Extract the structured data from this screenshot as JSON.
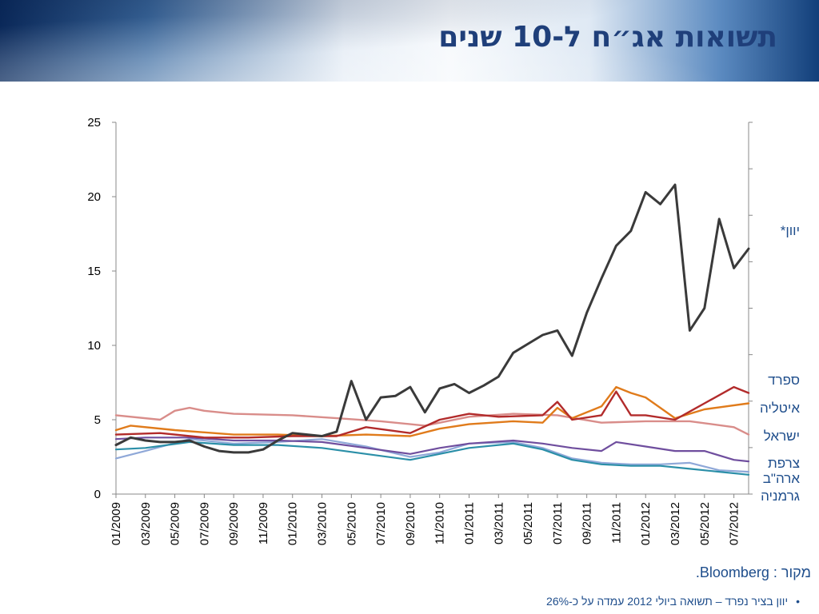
{
  "header": {
    "title": "תשואות אג״ח ל-10 שנים"
  },
  "colors": {
    "greece": "#3a3a3a",
    "spain": "#b22b2b",
    "italy": "#e07b1b",
    "israel": "#d98d8a",
    "france": "#6f4e9e",
    "usa": "#8fa8d8",
    "germany": "#2b8fa8",
    "axis": "#888888",
    "labels": "#1f4e8c"
  },
  "source_label": "מקור : Bloomberg.",
  "footnote": "יוון בציר נפרד – תשואה ביולי 2012 עמדה על כ-26%",
  "chart_data": {
    "type": "line",
    "ylim": [
      0,
      25
    ],
    "yticks": [
      "0",
      "5",
      "10",
      "15",
      "20",
      "25"
    ],
    "xticks": [
      "01/2009",
      "03/2009",
      "05/2009",
      "07/2009",
      "09/2009",
      "11/2009",
      "01/2010",
      "03/2010",
      "05/2010",
      "07/2010",
      "09/2010",
      "11/2010",
      "01/2011",
      "03/2011",
      "05/2011",
      "07/2011",
      "09/2011",
      "11/2011",
      "01/2012",
      "03/2012",
      "05/2012",
      "07/2012"
    ],
    "xlim": [
      "2009-01",
      "2012-08"
    ],
    "legend_labels": [
      "יוון*",
      "ספרד",
      "איטליה",
      "ישראל",
      "צרפת",
      "ארה\"ב",
      "גרמניה"
    ],
    "series": [
      {
        "name": "יוון*",
        "x": [
          "2009-01",
          "2009-02",
          "2009-03",
          "2009-04",
          "2009-05",
          "2009-06",
          "2009-07",
          "2009-08",
          "2009-09",
          "2009-10",
          "2009-11",
          "2009-12",
          "2010-01",
          "2010-02",
          "2010-03",
          "2010-04",
          "2010-05",
          "2010-06",
          "2010-07",
          "2010-08",
          "2010-09",
          "2010-10",
          "2010-11",
          "2010-12",
          "2011-01",
          "2011-02",
          "2011-03",
          "2011-04",
          "2011-05",
          "2011-06",
          "2011-07",
          "2011-08",
          "2011-09",
          "2011-10",
          "2011-11",
          "2011-12",
          "2012-01",
          "2012-02",
          "2012-03",
          "2012-04",
          "2012-05",
          "2012-06",
          "2012-07",
          "2012-08"
        ],
        "values": [
          3.3,
          3.8,
          3.6,
          3.5,
          3.5,
          3.6,
          3.2,
          2.9,
          2.8,
          2.8,
          3.0,
          3.6,
          4.1,
          4.0,
          3.9,
          4.2,
          7.6,
          5.0,
          6.5,
          6.6,
          7.2,
          5.5,
          7.1,
          7.4,
          6.8,
          7.3,
          7.9,
          9.5,
          10.1,
          10.7,
          11.0,
          9.3,
          12.2,
          14.5,
          16.7,
          17.7,
          20.3,
          19.5,
          20.8,
          11.0,
          12.5,
          18.5,
          15.2,
          16.5
        ]
      },
      {
        "name": "ספרד",
        "x": [
          "2009-01",
          "2009-04",
          "2009-07",
          "2009-10",
          "2010-01",
          "2010-04",
          "2010-06",
          "2010-09",
          "2010-11",
          "2011-01",
          "2011-03",
          "2011-06",
          "2011-07",
          "2011-08",
          "2011-10",
          "2011-11",
          "2011-12",
          "2012-01",
          "2012-03",
          "2012-05",
          "2012-07",
          "2012-08"
        ],
        "values": [
          4.0,
          4.1,
          3.8,
          3.8,
          3.9,
          3.9,
          4.5,
          4.1,
          5.0,
          5.4,
          5.2,
          5.3,
          6.2,
          5.0,
          5.3,
          6.9,
          5.3,
          5.3,
          5.0,
          6.1,
          7.2,
          6.8
        ]
      },
      {
        "name": "איטליה",
        "x": [
          "2009-01",
          "2009-02",
          "2009-05",
          "2009-09",
          "2009-12",
          "2010-03",
          "2010-06",
          "2010-09",
          "2010-11",
          "2011-01",
          "2011-04",
          "2011-06",
          "2011-07",
          "2011-08",
          "2011-10",
          "2011-11",
          "2011-12",
          "2012-01",
          "2012-03",
          "2012-05",
          "2012-08"
        ],
        "values": [
          4.3,
          4.6,
          4.3,
          4.0,
          4.0,
          3.9,
          4.0,
          3.9,
          4.4,
          4.7,
          4.9,
          4.8,
          5.8,
          5.1,
          5.9,
          7.2,
          6.8,
          6.5,
          5.1,
          5.7,
          6.1
        ]
      },
      {
        "name": "ישראל",
        "x": [
          "2009-01",
          "2009-04",
          "2009-05",
          "2009-06",
          "2009-07",
          "2009-09",
          "2010-01",
          "2010-04",
          "2010-07",
          "2010-10",
          "2011-01",
          "2011-04",
          "2011-07",
          "2011-10",
          "2012-01",
          "2012-04",
          "2012-07",
          "2012-08"
        ],
        "values": [
          5.3,
          5.0,
          5.6,
          5.8,
          5.6,
          5.4,
          5.3,
          5.1,
          4.9,
          4.6,
          5.2,
          5.4,
          5.3,
          4.8,
          4.9,
          4.9,
          4.5,
          4.0
        ]
      },
      {
        "name": "צרפת",
        "x": [
          "2009-01",
          "2009-03",
          "2009-06",
          "2009-09",
          "2009-12",
          "2010-03",
          "2010-06",
          "2010-09",
          "2010-11",
          "2011-01",
          "2011-04",
          "2011-06",
          "2011-08",
          "2011-10",
          "2011-11",
          "2012-01",
          "2012-03",
          "2012-05",
          "2012-07",
          "2012-08"
        ],
        "values": [
          3.7,
          3.8,
          3.8,
          3.6,
          3.6,
          3.5,
          3.1,
          2.7,
          3.1,
          3.4,
          3.6,
          3.4,
          3.1,
          2.9,
          3.5,
          3.2,
          2.9,
          2.9,
          2.3,
          2.2
        ]
      },
      {
        "name": "ארה\"ב",
        "x": [
          "2009-01",
          "2009-03",
          "2009-06",
          "2009-09",
          "2009-12",
          "2010-03",
          "2010-06",
          "2010-09",
          "2010-11",
          "2011-01",
          "2011-04",
          "2011-06",
          "2011-08",
          "2011-10",
          "2011-12",
          "2012-02",
          "2012-04",
          "2012-06",
          "2012-08"
        ],
        "values": [
          2.4,
          2.9,
          3.7,
          3.4,
          3.5,
          3.7,
          3.2,
          2.5,
          2.8,
          3.4,
          3.5,
          3.1,
          2.4,
          2.1,
          2.0,
          2.0,
          2.1,
          1.6,
          1.5
        ]
      },
      {
        "name": "גרמניה",
        "x": [
          "2009-01",
          "2009-03",
          "2009-06",
          "2009-09",
          "2009-12",
          "2010-03",
          "2010-06",
          "2010-09",
          "2010-11",
          "2011-01",
          "2011-04",
          "2011-06",
          "2011-08",
          "2011-10",
          "2011-12",
          "2012-02",
          "2012-04",
          "2012-06",
          "2012-08"
        ],
        "values": [
          3.0,
          3.1,
          3.5,
          3.3,
          3.3,
          3.1,
          2.7,
          2.3,
          2.7,
          3.1,
          3.4,
          3.0,
          2.3,
          2.0,
          1.9,
          1.9,
          1.7,
          1.5,
          1.3
        ]
      }
    ]
  }
}
